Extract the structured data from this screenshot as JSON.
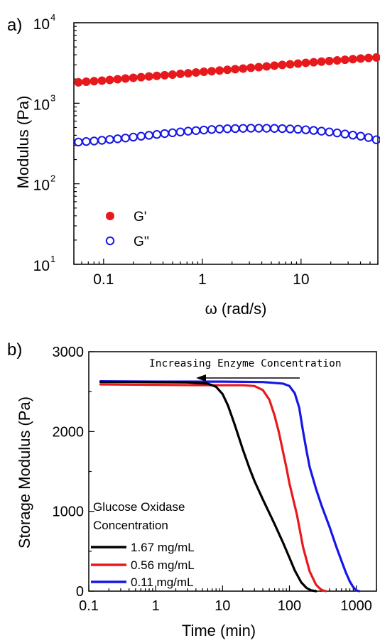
{
  "colors": {
    "red": "#e8191d",
    "blue": "#1616e6",
    "black": "#000000"
  },
  "chart_data": [
    {
      "panel_label": "a)",
      "type": "scatter",
      "xlabel": "ω (rad/s)",
      "ylabel": "Modulus (Pa)",
      "xscale": "log",
      "yscale": "log",
      "xlim": [
        0.05,
        60
      ],
      "ylim": [
        10,
        10000
      ],
      "xticks": [
        {
          "value": 0.1,
          "label": "0.1"
        },
        {
          "value": 1,
          "label": "1"
        },
        {
          "value": 10,
          "label": "10"
        }
      ],
      "yticks": [
        {
          "value": 10,
          "base": "10",
          "exp": "1"
        },
        {
          "value": 100,
          "base": "10",
          "exp": "2"
        },
        {
          "value": 1000,
          "base": "10",
          "exp": "3"
        },
        {
          "value": 10000,
          "base": "10",
          "exp": "4"
        }
      ],
      "legend_position": "bottom-left",
      "series": [
        {
          "name": "G'",
          "marker": "filled-circle",
          "color": "#e8191d",
          "x": [
            0.0556,
            0.0667,
            0.0801,
            0.0962,
            0.1155,
            0.1387,
            0.1665,
            0.1999,
            0.24,
            0.2882,
            0.346,
            0.4155,
            0.4988,
            0.5989,
            0.7191,
            0.8634,
            1.0367,
            1.2447,
            1.4945,
            1.7944,
            2.1544,
            2.5868,
            3.1059,
            3.7292,
            4.4776,
            5.3761,
            6.455,
            7.7504,
            9.3057,
            11.173,
            13.415,
            16.108,
            19.34,
            23.22,
            27.88,
            33.475,
            40.193,
            48.259,
            57.943
          ],
          "y": [
            1820,
            1850,
            1880,
            1910,
            1950,
            1990,
            2030,
            2070,
            2110,
            2150,
            2190,
            2230,
            2270,
            2320,
            2360,
            2410,
            2460,
            2500,
            2550,
            2600,
            2650,
            2700,
            2760,
            2810,
            2870,
            2930,
            2990,
            3050,
            3110,
            3170,
            3230,
            3290,
            3350,
            3410,
            3470,
            3530,
            3590,
            3650,
            3700
          ]
        },
        {
          "name": "G''",
          "marker": "open-circle",
          "color": "#1616e6",
          "x": [
            0.0556,
            0.0667,
            0.0801,
            0.0962,
            0.1155,
            0.1387,
            0.1665,
            0.1999,
            0.24,
            0.2882,
            0.346,
            0.4155,
            0.4988,
            0.5989,
            0.7191,
            0.8634,
            1.0367,
            1.2447,
            1.4945,
            1.7944,
            2.1544,
            2.5868,
            3.1059,
            3.7292,
            4.4776,
            5.3761,
            6.455,
            7.7504,
            9.3057,
            11.173,
            13.415,
            16.108,
            19.34,
            23.22,
            27.88,
            33.475,
            40.193,
            48.259,
            57.943
          ],
          "y": [
            330,
            335,
            340,
            347,
            355,
            362,
            370,
            380,
            390,
            400,
            410,
            420,
            430,
            440,
            450,
            458,
            465,
            472,
            478,
            482,
            485,
            488,
            490,
            490,
            489,
            487,
            484,
            480,
            475,
            468,
            460,
            450,
            440,
            428,
            415,
            402,
            390,
            375,
            352
          ]
        }
      ]
    },
    {
      "panel_label": "b)",
      "type": "line",
      "xlabel": "Time (min)",
      "ylabel": "Storage Modulus (Pa)",
      "xscale": "log",
      "yscale": "linear",
      "xlim": [
        0.1,
        2000
      ],
      "ylim": [
        0,
        3000
      ],
      "xticks": [
        {
          "value": 0.1,
          "label": "0.1"
        },
        {
          "value": 1,
          "label": "1"
        },
        {
          "value": 10,
          "label": "10"
        },
        {
          "value": 100,
          "label": "100"
        },
        {
          "value": 1000,
          "label": "1000"
        }
      ],
      "yticks": [
        {
          "value": 0,
          "label": "0"
        },
        {
          "value": 1000,
          "label": "1000"
        },
        {
          "value": 2000,
          "label": "2000"
        },
        {
          "value": 3000,
          "label": "3000"
        }
      ],
      "annotation": "Increasing Enzyme Concentration",
      "legend_title": [
        "Glucose Oxidase",
        "Concentration"
      ],
      "legend_position": "bottom-left",
      "series": [
        {
          "name": "1.67 mg/mL",
          "color": "#000000",
          "x": [
            0.15,
            0.5,
            1,
            3,
            6,
            8,
            10,
            12,
            15,
            20,
            25,
            30,
            40,
            50,
            60,
            80,
            100,
            120,
            150,
            180,
            210,
            250
          ],
          "y": [
            2620,
            2620,
            2618,
            2615,
            2600,
            2560,
            2470,
            2330,
            2100,
            1780,
            1550,
            1380,
            1150,
            980,
            840,
            610,
            420,
            260,
            110,
            40,
            10,
            0
          ]
        },
        {
          "name": "0.56 mg/mL",
          "color": "#e8191d",
          "x": [
            0.15,
            1,
            5,
            10,
            20,
            30,
            40,
            50,
            60,
            70,
            80,
            90,
            100,
            130,
            160,
            200,
            250,
            300,
            350
          ],
          "y": [
            2590,
            2585,
            2580,
            2580,
            2580,
            2570,
            2520,
            2400,
            2200,
            1980,
            1750,
            1550,
            1350,
            950,
            550,
            250,
            80,
            15,
            0
          ]
        },
        {
          "name": "0.11 mg/mL",
          "color": "#1616e6",
          "x": [
            0.15,
            1,
            10,
            40,
            80,
            100,
            120,
            140,
            160,
            180,
            200,
            250,
            300,
            400,
            500,
            600,
            700,
            800,
            900,
            1000,
            1100
          ],
          "y": [
            2630,
            2625,
            2625,
            2620,
            2600,
            2570,
            2480,
            2300,
            2000,
            1760,
            1560,
            1280,
            1080,
            800,
            560,
            380,
            230,
            120,
            50,
            10,
            0
          ]
        }
      ]
    }
  ]
}
